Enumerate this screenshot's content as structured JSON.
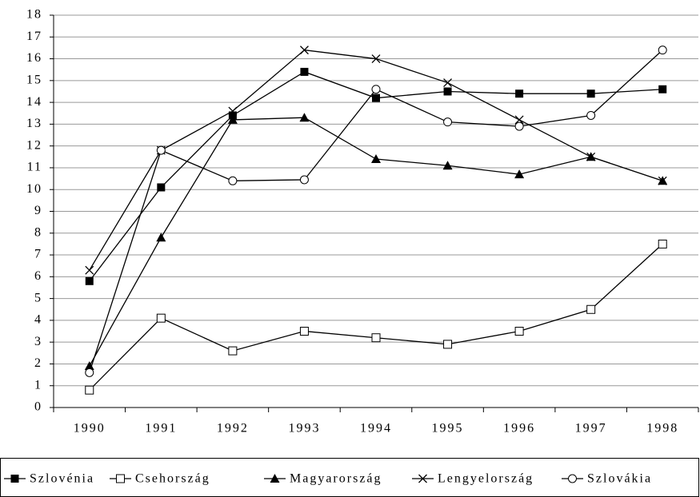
{
  "chart_data": {
    "type": "line",
    "categories": [
      "1990",
      "1991",
      "1992",
      "1993",
      "1994",
      "1995",
      "1996",
      "1997",
      "1998"
    ],
    "series": [
      {
        "name": "Szlovénia",
        "color": "#000000",
        "marker": "square-filled",
        "values": [
          5.8,
          10.1,
          13.4,
          15.4,
          14.2,
          14.5,
          14.4,
          14.4,
          14.6
        ]
      },
      {
        "name": "Csehország",
        "color": "#000000",
        "marker": "square-open",
        "values": [
          0.8,
          4.1,
          2.6,
          3.5,
          3.2,
          2.9,
          3.5,
          4.5,
          7.5
        ]
      },
      {
        "name": "Magyarország",
        "color": "#000000",
        "marker": "triangle-filled",
        "values": [
          1.9,
          7.8,
          13.2,
          13.3,
          11.4,
          11.1,
          10.7,
          11.5,
          10.4
        ]
      },
      {
        "name": "Lengyelország",
        "color": "#000000",
        "marker": "cross",
        "values": [
          6.3,
          11.8,
          13.6,
          16.4,
          16.0,
          14.9,
          13.2,
          11.5,
          10.4
        ]
      },
      {
        "name": "Szlovákia",
        "color": "#000000",
        "marker": "circle-open",
        "values": [
          1.6,
          11.8,
          10.4,
          10.45,
          14.6,
          13.1,
          12.9,
          13.4,
          16.4
        ]
      }
    ],
    "ylim": [
      0,
      18
    ],
    "yticks": [
      0,
      1,
      2,
      3,
      4,
      5,
      6,
      7,
      8,
      9,
      10,
      11,
      12,
      13,
      14,
      15,
      16,
      17,
      18
    ],
    "grid": true,
    "legend": "bottom"
  }
}
